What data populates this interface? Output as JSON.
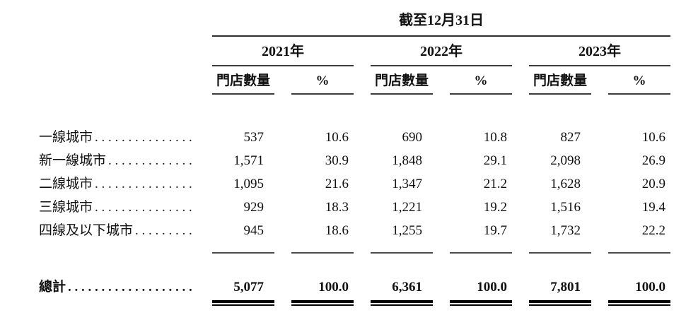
{
  "table": {
    "title": "截至12月31日",
    "year_groups": [
      {
        "year": "2021年",
        "col_stores": "門店數量",
        "col_pct": "%"
      },
      {
        "year": "2022年",
        "col_stores": "門店數量",
        "col_pct": "%"
      },
      {
        "year": "2023年",
        "col_stores": "門店數量",
        "col_pct": "%"
      }
    ],
    "rows": [
      {
        "label": "一線城市",
        "values": [
          "537",
          "10.6",
          "690",
          "10.8",
          "827",
          "10.6"
        ]
      },
      {
        "label": "新一線城市",
        "values": [
          "1,571",
          "30.9",
          "1,848",
          "29.1",
          "2,098",
          "26.9"
        ]
      },
      {
        "label": "二線城市",
        "values": [
          "1,095",
          "21.6",
          "1,347",
          "21.2",
          "1,628",
          "20.9"
        ]
      },
      {
        "label": "三線城市",
        "values": [
          "929",
          "18.3",
          "1,221",
          "19.2",
          "1,516",
          "19.4"
        ]
      },
      {
        "label": "四線及以下城市",
        "values": [
          "945",
          "18.6",
          "1,255",
          "19.7",
          "1,732",
          "22.2"
        ]
      }
    ],
    "total": {
      "label": "總計",
      "values": [
        "5,077",
        "100.0",
        "6,361",
        "100.0",
        "7,801",
        "100.0"
      ]
    }
  },
  "ui": {
    "leader": ". . . . . . . . . . . . . . . . . . . . . . . . . . . . . . . . . . . ."
  },
  "colors": {
    "text": "#111111",
    "rule": "#3c3c3c",
    "total_rule": "#000000",
    "background": "#ffffff"
  }
}
